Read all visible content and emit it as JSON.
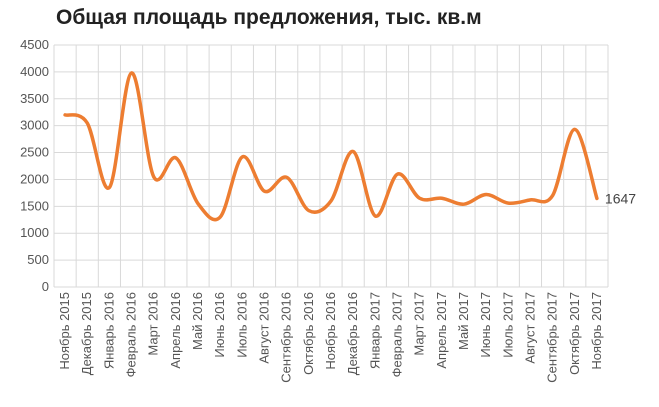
{
  "chart_data": {
    "type": "line",
    "title": "Общая площадь предложения, тыс. кв.м",
    "xlabel": "",
    "ylabel": "",
    "ylim": [
      0,
      4500
    ],
    "yticks": [
      0,
      500,
      1000,
      1500,
      2000,
      2500,
      3000,
      3500,
      4000,
      4500
    ],
    "grid": true,
    "legend": "none",
    "line_color": "#ED7D31",
    "categories": [
      "Ноябрь 2015",
      "Декабрь 2015",
      "Январь 2016",
      "Февраль 2016",
      "Март 2016",
      "Апрель 2016",
      "Май 2016",
      "Июнь 2016",
      "Июль 2016",
      "Август 2016",
      "Сентябрь 2016",
      "Октябрь 2016",
      "Ноябрь 2016",
      "Декабрь 2016",
      "Январь 2017",
      "Февраль 2017",
      "Март 2017",
      "Апрель 2017",
      "Май 2017",
      "Июнь 2017",
      "Июль 2017",
      "Август 2017",
      "Сентябрь 2017",
      "Октябрь 2017",
      "Ноябрь 2017"
    ],
    "series": [
      {
        "values": [
          3200,
          3050,
          1850,
          3980,
          2050,
          2400,
          1550,
          1300,
          2420,
          1780,
          2040,
          1420,
          1600,
          2520,
          1320,
          2100,
          1650,
          1650,
          1540,
          1720,
          1560,
          1620,
          1700,
          2930,
          1647
        ]
      }
    ],
    "end_label": "1647"
  }
}
